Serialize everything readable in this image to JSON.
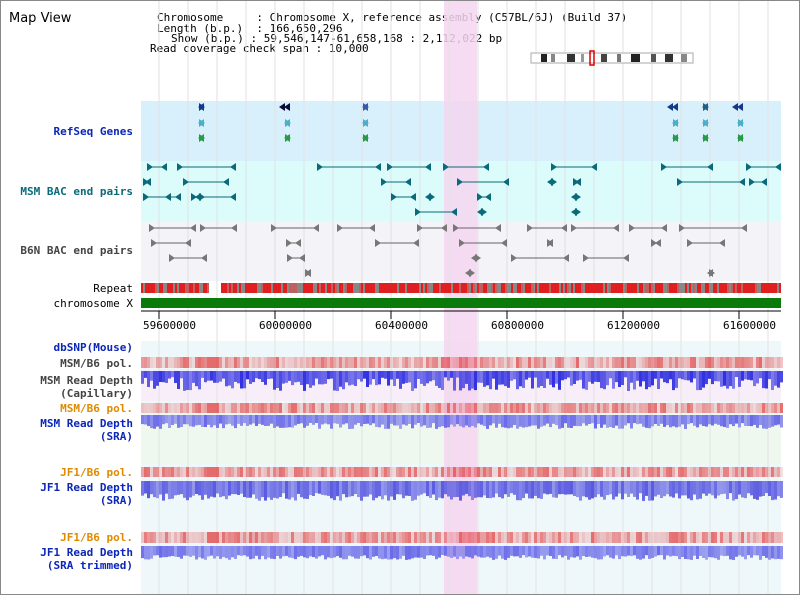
{
  "title": "Map View",
  "info": {
    "chromosome_label": "Chromosome",
    "chromosome_value": "Chromosome X, reference assembly (C57BL/6J) (Build 37)",
    "length_label": "Length (b.p.)",
    "length_value": "166,650,296",
    "show_label": "Show (b.p.)",
    "show_value": "59,546,147-61,658,168 : 2,112,022 bp",
    "coverage_label": "Read coverage check span",
    "coverage_value": "10,000"
  },
  "tracks": {
    "refseq": "RefSeq Genes",
    "msm_bac": "MSM BAC end pairs",
    "b6n_bac": "B6N BAC end pairs",
    "repeat": "Repeat",
    "chromosome": "chromosome X",
    "dbsnp": "dbSNP(Mouse)",
    "msm_b6_pol_cap": "MSM/B6 pol.",
    "msm_depth_cap_1": "MSM Read Depth",
    "msm_depth_cap_2": "(Capillary)",
    "msm_b6_pol_sra": "MSM/B6 pol.",
    "msm_depth_sra_1": "MSM Read Depth",
    "msm_depth_sra_2": "(SRA)",
    "jf1_b6_pol": "JF1/B6 pol.",
    "jf1_depth_1": "JF1 Read Depth",
    "jf1_depth_2": "(SRA)",
    "jf1_b6_pol_trim": "JF1/B6 pol.",
    "jf1_trim_1": "JF1 Read Depth",
    "jf1_trim_2": "(SRA trimmed)"
  },
  "axis": {
    "ticks": [
      "59600000",
      "60000000",
      "60400000",
      "60800000",
      "61200000",
      "61600000"
    ]
  },
  "colors": {
    "refseq_bg": "#d8f0fb",
    "msm_bg": "#dcfbfb",
    "b6n_bg": "#f3f3f8",
    "highlight": "#f5d6f0",
    "chromosome_bar": "#0a7a0a",
    "blue_label": "#0b26b8",
    "orange_label": "#e08a00",
    "depth_blue": "#4a4ae8"
  }
}
